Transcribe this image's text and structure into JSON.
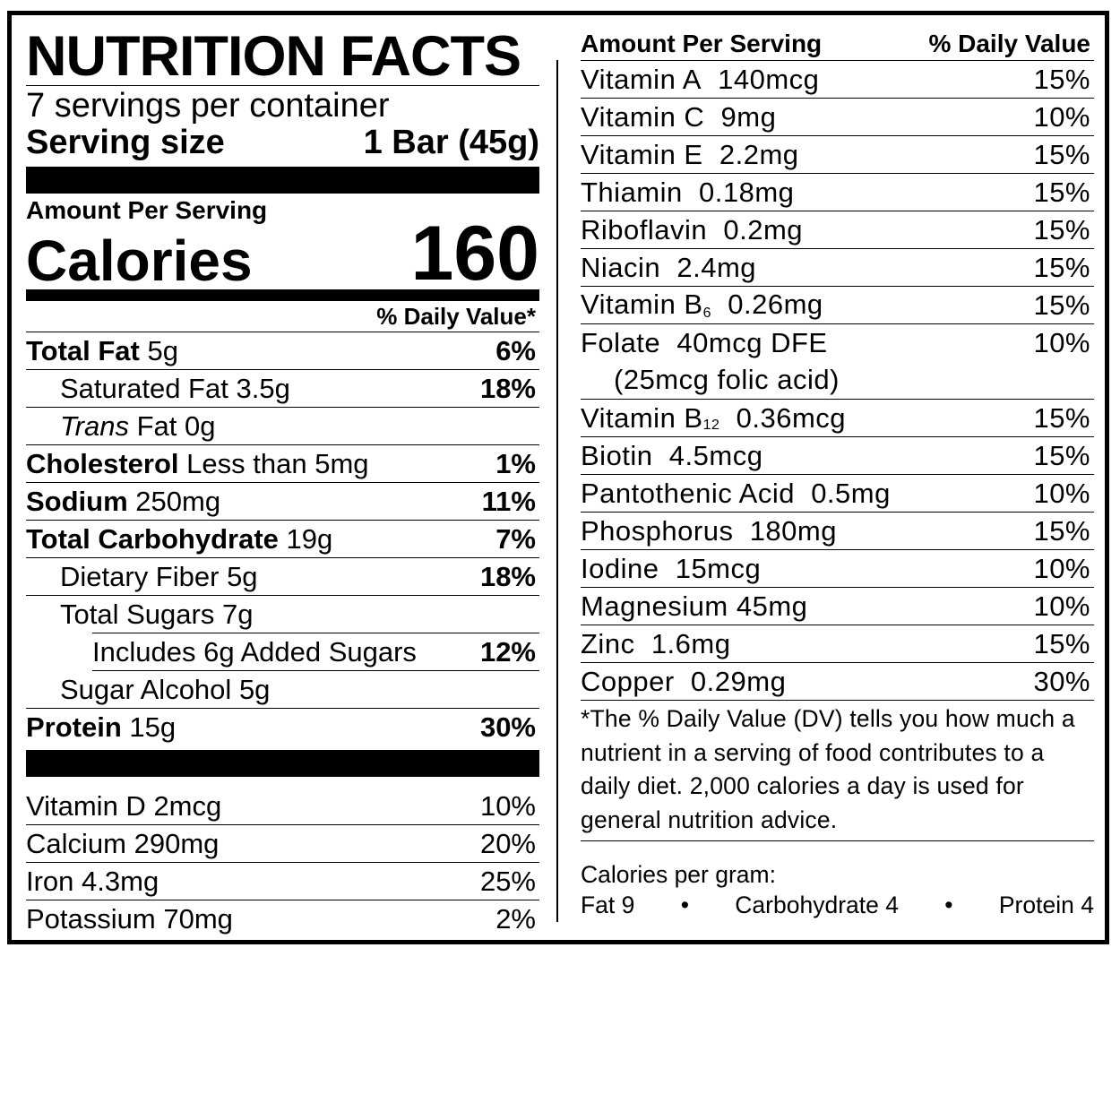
{
  "title": "NUTRITION FACTS",
  "servings_per_container": "7 servings per container",
  "serving_size_label": "Serving size",
  "serving_size_value": "1 Bar (45g)",
  "amount_per_serving": "Amount Per Serving",
  "calories_label": "Calories",
  "calories_value": "160",
  "daily_value_header": "% Daily Value*",
  "nutrients": [
    {
      "name": "Total Fat",
      "amount": "5g",
      "dv": "6%"
    },
    {
      "name": "Saturated Fat",
      "amount": "3.5g",
      "dv": "18%"
    },
    {
      "name": "Trans",
      "name_rest": "Fat",
      "amount": "0g",
      "dv": ""
    },
    {
      "name": "Cholesterol",
      "amount": "Less than 5mg",
      "dv": "1%"
    },
    {
      "name": "Sodium",
      "amount": "250mg",
      "dv": "11%"
    },
    {
      "name": "Total Carbohydrate",
      "amount": "19g",
      "dv": "7%"
    },
    {
      "name": "Dietary Fiber",
      "amount": "5g",
      "dv": "18%"
    },
    {
      "name": "Total Sugars",
      "amount": "7g",
      "dv": ""
    },
    {
      "name": "Includes 6g Added Sugars",
      "amount": "",
      "dv": "12%"
    },
    {
      "name": "Sugar Alcohol",
      "amount": "5g",
      "dv": ""
    },
    {
      "name": "Protein",
      "amount": "15g",
      "dv": "30%"
    }
  ],
  "minerals_left": [
    {
      "name": "Vitamin D",
      "amount": "2mcg",
      "dv": "10%"
    },
    {
      "name": "Calcium",
      "amount": "290mg",
      "dv": "20%"
    },
    {
      "name": "Iron",
      "amount": "4.3mg",
      "dv": "25%"
    },
    {
      "name": "Potassium",
      "amount": "70mg",
      "dv": "2%"
    }
  ],
  "right_header": {
    "left": "Amount Per Serving",
    "right": "% Daily Value"
  },
  "vitamins_right": [
    {
      "name": "Vitamin A",
      "amount": "140mcg",
      "dv": "15%"
    },
    {
      "name": "Vitamin C",
      "amount": "9mg",
      "dv": "10%"
    },
    {
      "name": "Vitamin E",
      "amount": "2.2mg",
      "dv": "15%"
    },
    {
      "name": "Thiamin",
      "amount": "0.18mg",
      "dv": "15%"
    },
    {
      "name": "Riboflavin",
      "amount": "0.2mg",
      "dv": "15%"
    },
    {
      "name": "Niacin",
      "amount": "2.4mg",
      "dv": "15%"
    },
    {
      "name": "Vitamin B",
      "sub": "6",
      "amount": "0.26mg",
      "dv": "15%"
    },
    {
      "name": "Folate",
      "amount": "40mcg DFE",
      "extra": "(25mcg folic acid)",
      "dv": "10%"
    },
    {
      "name": "Vitamin B",
      "sub": "12",
      "amount": "0.36mcg",
      "dv": "15%"
    },
    {
      "name": "Biotin",
      "amount": "4.5mcg",
      "dv": "15%"
    },
    {
      "name": "Pantothenic Acid",
      "amount": "0.5mg",
      "dv": "10%"
    },
    {
      "name": "Phosphorus",
      "amount": "180mg",
      "dv": "15%"
    },
    {
      "name": "Iodine",
      "amount": "15mcg",
      "dv": "10%"
    },
    {
      "name": "Magnesium",
      "amount": "45mg",
      "dv": "10%"
    },
    {
      "name": "Zinc",
      "amount": "1.6mg",
      "dv": "15%"
    },
    {
      "name": "Copper",
      "amount": "0.29mg",
      "dv": "30%"
    }
  ],
  "footnote": "*The % Daily Value (DV) tells you how much a nutrient in a serving of food contributes to a daily diet. 2,000 calories a day is used for general nutrition advice.",
  "calories_per_gram": {
    "label": "Calories per gram:",
    "fat": "Fat 9",
    "carb": "Carbohydrate 4",
    "protein": "Protein 4",
    "bullet": "•"
  }
}
